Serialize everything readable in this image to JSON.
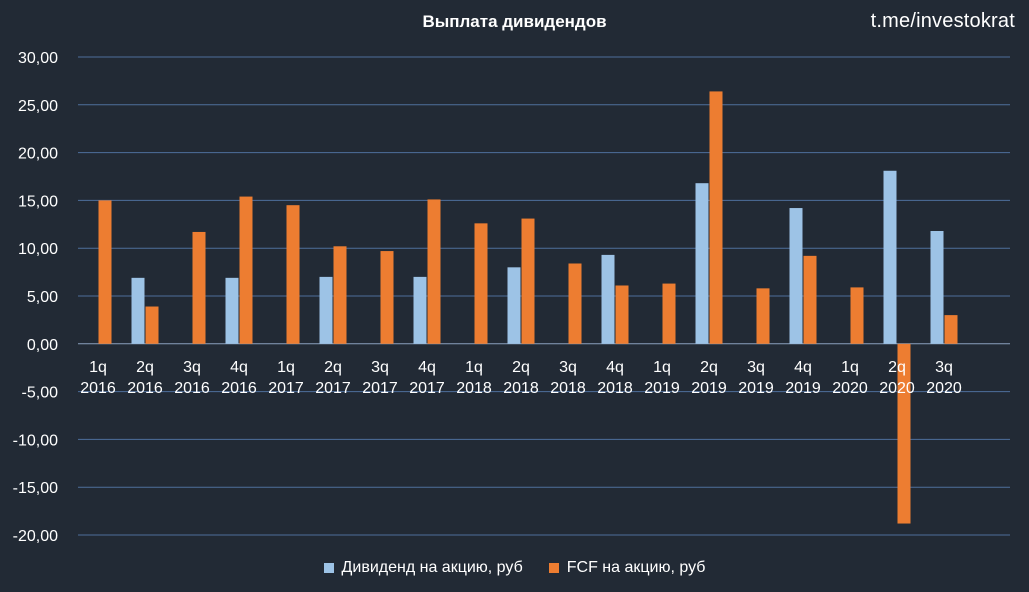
{
  "watermark": "t.me/investokrat",
  "chart_data": {
    "type": "bar",
    "title": "Выплата дивидендов",
    "xlabel": "",
    "ylabel": "",
    "ylim": [
      -20,
      30
    ],
    "yticks": [
      "30,00",
      "25,00",
      "20,00",
      "15,00",
      "10,00",
      "5,00",
      "0,00",
      "-5,00",
      "-10,00",
      "-15,00",
      "-20,00"
    ],
    "grid": true,
    "legend_position": "bottom",
    "categories": [
      [
        "1q",
        "2016"
      ],
      [
        "2q",
        "2016"
      ],
      [
        "3q",
        "2016"
      ],
      [
        "4q",
        "2016"
      ],
      [
        "1q",
        "2017"
      ],
      [
        "2q",
        "2017"
      ],
      [
        "3q",
        "2017"
      ],
      [
        "4q",
        "2017"
      ],
      [
        "1q",
        "2018"
      ],
      [
        "2q",
        "2018"
      ],
      [
        "3q",
        "2018"
      ],
      [
        "4q",
        "2018"
      ],
      [
        "1q",
        "2019"
      ],
      [
        "2q",
        "2019"
      ],
      [
        "3q",
        "2019"
      ],
      [
        "4q",
        "2019"
      ],
      [
        "1q",
        "2020"
      ],
      [
        "2q",
        "2020"
      ],
      [
        "3q",
        "2020"
      ]
    ],
    "series": [
      {
        "name": "Дивиденд на акцию, руб",
        "color": "#9dc3e6",
        "values": [
          0,
          6.9,
          0,
          6.9,
          0,
          7.0,
          0,
          7.0,
          0,
          8.0,
          0,
          9.3,
          0,
          16.8,
          0,
          14.2,
          0,
          18.1,
          11.8
        ]
      },
      {
        "name": "FCF на акцию, руб",
        "color": "#ed7d31",
        "values": [
          15.0,
          3.9,
          11.7,
          15.4,
          14.5,
          10.2,
          9.7,
          15.1,
          12.6,
          13.1,
          8.4,
          6.1,
          6.3,
          26.4,
          5.8,
          9.2,
          5.9,
          -18.8,
          3.0
        ]
      }
    ]
  }
}
